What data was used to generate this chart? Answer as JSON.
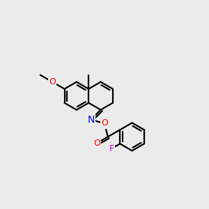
{
  "background_color": "#ebebeb",
  "bond_color": "#000000",
  "atom_colors": {
    "O": "#ff0000",
    "N": "#0000cd",
    "F": "#cc00cc",
    "C": "#000000"
  },
  "figsize": [
    3.0,
    3.0
  ],
  "dpi": 100,
  "blen": 26
}
